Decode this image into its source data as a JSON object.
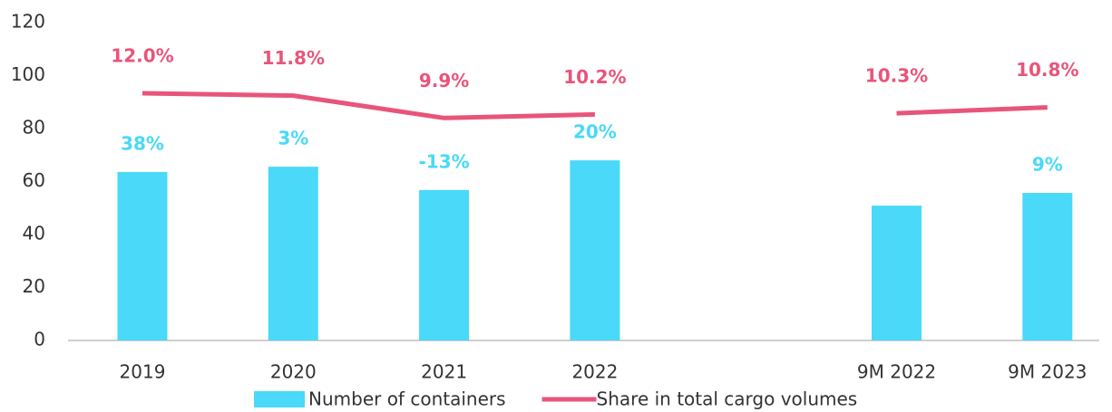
{
  "chart_data": {
    "type": "bar-line",
    "categories": [
      "2019",
      "2020",
      "2021",
      "2022",
      null,
      "9M 2022",
      "9M 2023"
    ],
    "series": [
      {
        "name": "Number of containers",
        "type": "bar",
        "color": "#4ad9f8",
        "values": [
          63.6,
          65.6,
          56.8,
          68,
          null,
          50.9,
          55.7
        ],
        "growth_labels": [
          "38%",
          "3%",
          "-13%",
          "20%",
          null,
          null,
          "9%"
        ]
      },
      {
        "name": "Share in total cargo volumes",
        "type": "line",
        "color": "#e8557a",
        "axis": "y2",
        "values": [
          12.0,
          11.8,
          9.9,
          10.2,
          null,
          10.3,
          10.8
        ],
        "value_labels": [
          "12.0%",
          "11.8%",
          "9.9%",
          "10.2%",
          null,
          "10.3%",
          "10.8%"
        ]
      }
    ],
    "ylim": [
      0,
      120
    ],
    "yticks": [
      0,
      20,
      40,
      60,
      80,
      100,
      120
    ],
    "y2lim": [
      -9,
      18
    ],
    "legend": "bottom"
  }
}
